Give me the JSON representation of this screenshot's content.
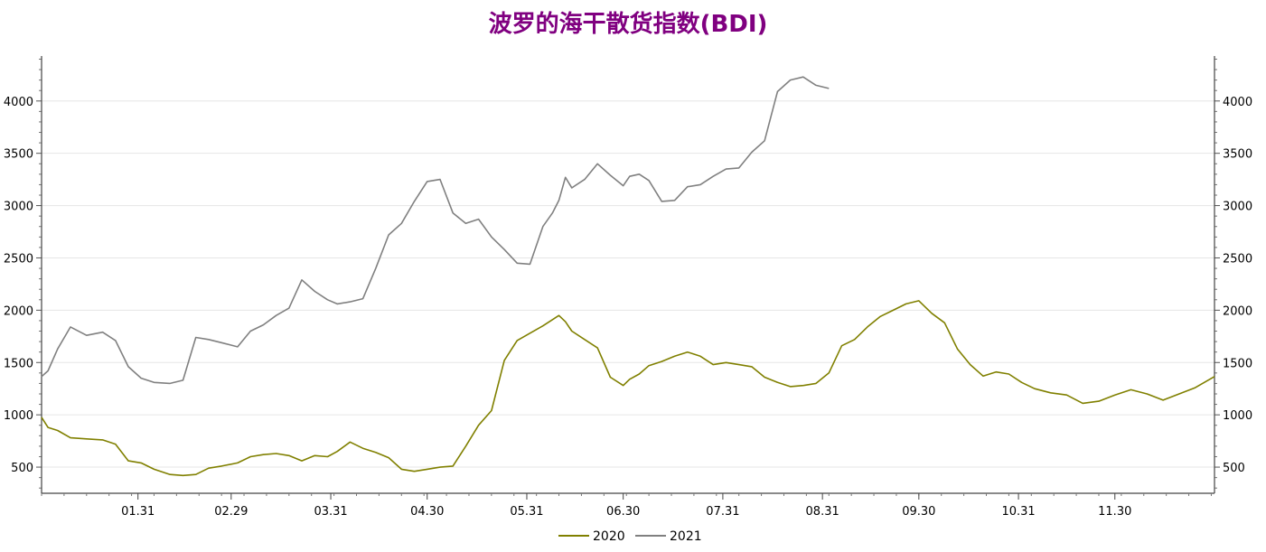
{
  "chart_data": {
    "type": "line",
    "title": "波罗的海干散货指数(BDI)",
    "xlabel": "",
    "ylabel": "",
    "ylim": [
      250,
      4430
    ],
    "y_ticks": [
      500,
      1000,
      1500,
      2000,
      2500,
      3000,
      3500,
      4000
    ],
    "x_range": [
      "01-01",
      "12-31"
    ],
    "x_tick_labels": [
      "01.31",
      "02.29",
      "03.31",
      "04.30",
      "05.31",
      "06.30",
      "07.31",
      "08.31",
      "09.30",
      "10.31",
      "11.30"
    ],
    "grid": "horizontal",
    "legend_position": "bottom",
    "colors": {
      "2020": "#808000",
      "2021": "#808080"
    },
    "series": [
      {
        "name": "2020",
        "x": [
          "01-01",
          "01-03",
          "01-06",
          "01-10",
          "01-15",
          "01-20",
          "01-24",
          "01-28",
          "02-01",
          "02-05",
          "02-10",
          "02-14",
          "02-18",
          "02-22",
          "02-26",
          "03-02",
          "03-06",
          "03-10",
          "03-14",
          "03-18",
          "03-22",
          "03-26",
          "03-30",
          "04-02",
          "04-06",
          "04-10",
          "04-14",
          "04-18",
          "04-22",
          "04-26",
          "04-30",
          "05-04",
          "05-08",
          "05-12",
          "05-16",
          "05-20",
          "05-24",
          "05-28",
          "06-01",
          "06-05",
          "06-08",
          "06-10",
          "06-12",
          "06-14",
          "06-18",
          "06-22",
          "06-26",
          "06-30",
          "07-02",
          "07-05",
          "07-08",
          "07-12",
          "07-16",
          "07-20",
          "07-24",
          "07-28",
          "08-01",
          "08-05",
          "08-09",
          "08-13",
          "08-17",
          "08-21",
          "08-25",
          "08-29",
          "09-02",
          "09-06",
          "09-10",
          "09-14",
          "09-18",
          "09-22",
          "09-26",
          "09-30",
          "10-04",
          "10-08",
          "10-12",
          "10-16",
          "10-20",
          "10-24",
          "10-28",
          "11-01",
          "11-05",
          "11-10",
          "11-15",
          "11-20",
          "11-25",
          "11-30",
          "12-05",
          "12-10",
          "12-15",
          "12-20",
          "12-25",
          "12-31"
        ],
        "values": [
          976,
          880,
          850,
          780,
          770,
          760,
          720,
          560,
          540,
          480,
          430,
          420,
          430,
          490,
          510,
          540,
          600,
          620,
          630,
          610,
          560,
          610,
          600,
          650,
          740,
          680,
          640,
          590,
          480,
          460,
          480,
          500,
          510,
          700,
          900,
          1040,
          1520,
          1710,
          1780,
          1850,
          1910,
          1950,
          1890,
          1800,
          1720,
          1640,
          1360,
          1280,
          1340,
          1390,
          1470,
          1510,
          1560,
          1600,
          1560,
          1480,
          1500,
          1480,
          1460,
          1360,
          1310,
          1270,
          1280,
          1300,
          1400,
          1660,
          1720,
          1840,
          1940,
          2000,
          2060,
          2090,
          1970,
          1880,
          1630,
          1480,
          1370,
          1410,
          1390,
          1310,
          1250,
          1210,
          1190,
          1110,
          1130,
          1190,
          1240,
          1200,
          1140,
          1200,
          1260,
          1366
        ]
      },
      {
        "name": "2021",
        "x": [
          "01-01",
          "01-03",
          "01-06",
          "01-10",
          "01-15",
          "01-20",
          "01-24",
          "01-28",
          "02-01",
          "02-05",
          "02-10",
          "02-14",
          "02-18",
          "02-22",
          "02-26",
          "03-02",
          "03-06",
          "03-10",
          "03-14",
          "03-18",
          "03-22",
          "03-26",
          "03-30",
          "04-02",
          "04-06",
          "04-10",
          "04-14",
          "04-18",
          "04-22",
          "04-26",
          "04-30",
          "05-04",
          "05-08",
          "05-12",
          "05-16",
          "05-20",
          "05-24",
          "05-28",
          "06-01",
          "06-05",
          "06-08",
          "06-10",
          "06-12",
          "06-14",
          "06-18",
          "06-22",
          "06-26",
          "06-30",
          "07-02",
          "07-05",
          "07-08",
          "07-12",
          "07-16",
          "07-20",
          "07-24",
          "07-28",
          "08-01",
          "08-05",
          "08-09",
          "08-13",
          "08-17",
          "08-21",
          "08-25",
          "08-29",
          "09-02"
        ],
        "values": [
          1366,
          1420,
          1630,
          1840,
          1760,
          1790,
          1710,
          1460,
          1350,
          1310,
          1300,
          1330,
          1740,
          1720,
          1690,
          1650,
          1800,
          1860,
          1950,
          2020,
          2290,
          2180,
          2100,
          2060,
          2080,
          2110,
          2400,
          2720,
          2830,
          3040,
          3230,
          3250,
          2930,
          2830,
          2870,
          2700,
          2580,
          2450,
          2440,
          2800,
          2930,
          3050,
          3270,
          3170,
          3250,
          3400,
          3290,
          3190,
          3280,
          3300,
          3240,
          3040,
          3050,
          3180,
          3200,
          3280,
          3350,
          3360,
          3510,
          3620,
          4090,
          4200,
          4230,
          4150,
          4120
        ]
      }
    ]
  }
}
